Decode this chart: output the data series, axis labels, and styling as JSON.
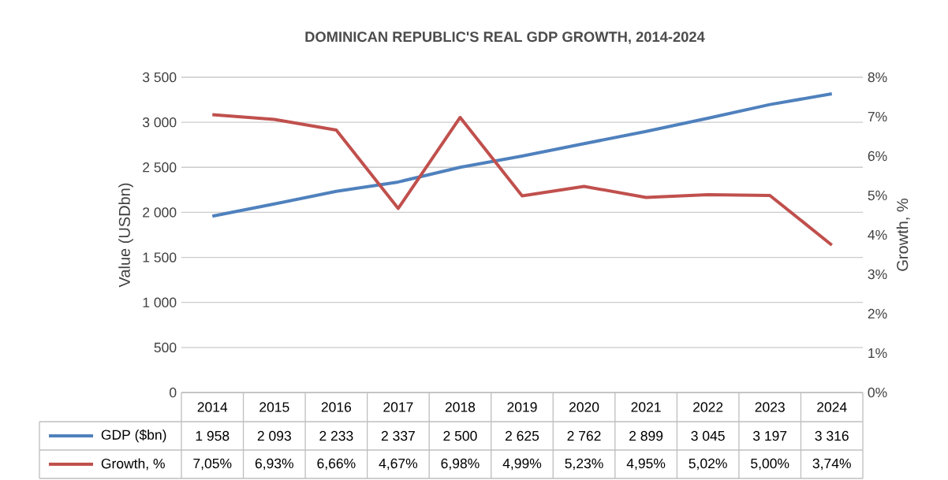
{
  "chart_data": {
    "type": "line",
    "title": "DOMINICAN REPUBLIC'S REAL GDP GROWTH, 2014-2024",
    "ylabel": "Value (USDbn)",
    "y2label": "Growth, %",
    "categories": [
      "2014",
      "2015",
      "2016",
      "2017",
      "2018",
      "2019",
      "2020",
      "2021",
      "2022",
      "2023",
      "2024"
    ],
    "series": [
      {
        "name": "GDP ($bn)",
        "color": "#4f81bd",
        "values": [
          1958,
          2093,
          2233,
          2337,
          2500,
          2625,
          2762,
          2899,
          3045,
          3197,
          3316
        ],
        "value_labels": [
          "1 958",
          "2 093",
          "2 233",
          "2 337",
          "2 500",
          "2 625",
          "2 762",
          "2 899",
          "3 045",
          "3 197",
          "3 316"
        ]
      },
      {
        "name": "Growth, %",
        "color": "#c0504d",
        "axis": "y2",
        "values": [
          7.05,
          6.93,
          6.66,
          4.67,
          6.98,
          4.99,
          5.23,
          4.95,
          5.02,
          5.0,
          3.74
        ],
        "value_labels": [
          "7,05%",
          "6,93%",
          "6,66%",
          "4,67%",
          "6,98%",
          "4,99%",
          "5,23%",
          "4,95%",
          "5,02%",
          "5,00%",
          "3,74%"
        ]
      }
    ],
    "ylim": [
      0,
      3500
    ],
    "yticks": [
      {
        "value": 0,
        "label": "0"
      },
      {
        "value": 500,
        "label": "500"
      },
      {
        "value": 1000,
        "label": "1 000"
      },
      {
        "value": 1500,
        "label": "1 500"
      },
      {
        "value": 2000,
        "label": "2 000"
      },
      {
        "value": 2500,
        "label": "2 500"
      },
      {
        "value": 3000,
        "label": "3 000"
      },
      {
        "value": 3500,
        "label": "3 500"
      }
    ],
    "y2lim": [
      0,
      8
    ],
    "y2ticks": [
      {
        "value": 0,
        "label": "0%"
      },
      {
        "value": 1,
        "label": "1%"
      },
      {
        "value": 2,
        "label": "2%"
      },
      {
        "value": 3,
        "label": "3%"
      },
      {
        "value": 4,
        "label": "4%"
      },
      {
        "value": 5,
        "label": "5%"
      },
      {
        "value": 6,
        "label": "6%"
      },
      {
        "value": 7,
        "label": "7%"
      },
      {
        "value": 8,
        "label": "8%"
      }
    ],
    "grid": "y",
    "legend": "bottom"
  }
}
